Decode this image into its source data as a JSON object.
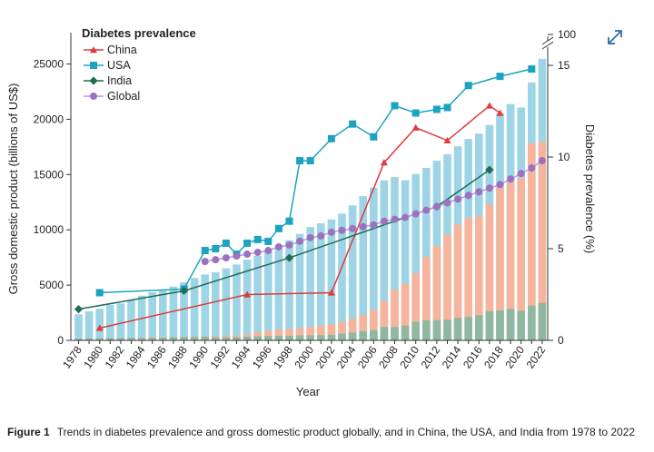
{
  "figure": {
    "label": "Figure 1",
    "caption": "Trends in diabetes prevalence and gross domestic product globally, and in China, the USA, and India from 1978 to 2022"
  },
  "expand_icon": "expand-diagonal-arrows-icon",
  "chart_data": {
    "type": "bar+line",
    "xlabel": "Year",
    "ylabel_left": "Gross domestic product (billions of US$)",
    "ylabel_right": "Diabetes prevalence (%)",
    "ylim_left": [
      0,
      27500
    ],
    "yticks_left": [
      "0",
      "5000",
      "10000",
      "15000",
      "20000",
      "25000"
    ],
    "ylim_right": [
      0,
      15
    ],
    "yticks_right": [
      "0",
      "5",
      "10",
      "15"
    ],
    "right_axis_break_label": "100",
    "xticks": [
      "1978",
      "1980",
      "1982",
      "1984",
      "1986",
      "1988",
      "1990",
      "1992",
      "1994",
      "1996",
      "1998",
      "2000",
      "2002",
      "2004",
      "2006",
      "2008",
      "2010",
      "2012",
      "2014",
      "2016",
      "2018",
      "2020",
      "2022"
    ],
    "categories": [
      1978,
      1979,
      1980,
      1981,
      1982,
      1983,
      1984,
      1985,
      1986,
      1987,
      1988,
      1989,
      1990,
      1991,
      1992,
      1993,
      1994,
      1995,
      1996,
      1997,
      1998,
      1999,
      2000,
      2001,
      2002,
      2003,
      2004,
      2005,
      2006,
      2007,
      2008,
      2009,
      2010,
      2011,
      2012,
      2013,
      2014,
      2015,
      2016,
      2017,
      2018,
      2019,
      2020,
      2021,
      2022
    ],
    "gdp_series": [
      {
        "name": "USA GDP",
        "color": "#9ed5e6",
        "values": [
          2350,
          2630,
          2860,
          3210,
          3340,
          3640,
          4040,
          4350,
          4590,
          4870,
          5250,
          5640,
          5960,
          6160,
          6520,
          6860,
          7290,
          7640,
          8070,
          8580,
          9060,
          9630,
          10250,
          10580,
          10940,
          11460,
          12210,
          13040,
          13810,
          14470,
          14770,
          14480,
          15050,
          15600,
          16250,
          16840,
          17550,
          18210,
          18700,
          19480,
          20530,
          21380,
          21060,
          23320,
          25460
        ]
      },
      {
        "name": "China GDP",
        "color": "#f7b49c",
        "values": [
          150,
          180,
          190,
          200,
          210,
          230,
          260,
          310,
          300,
          270,
          310,
          350,
          360,
          380,
          430,
          440,
          560,
          730,
          860,
          960,
          1030,
          1090,
          1210,
          1340,
          1470,
          1660,
          1960,
          2290,
          2750,
          3550,
          4590,
          5100,
          6090,
          7550,
          8530,
          9570,
          10480,
          11060,
          11230,
          12310,
          13890,
          14280,
          14690,
          17820,
          17960
        ]
      },
      {
        "name": "India GDP",
        "color": "#8fb8a0",
        "values": [
          140,
          150,
          190,
          200,
          200,
          220,
          210,
          230,
          250,
          280,
          300,
          300,
          320,
          270,
          290,
          280,
          330,
          370,
          400,
          420,
          420,
          460,
          470,
          480,
          510,
          610,
          710,
          820,
          940,
          1220,
          1200,
          1340,
          1680,
          1820,
          1830,
          1860,
          2040,
          2100,
          2290,
          2650,
          2700,
          2840,
          2670,
          3150,
          3390
        ]
      }
    ],
    "prevalence_series": [
      {
        "name": "China",
        "marker": "triangle",
        "color": "#e03a3a",
        "points": [
          [
            1980,
            0.67
          ],
          [
            1994,
            2.5
          ],
          [
            2002,
            2.6
          ],
          [
            2007,
            9.7
          ],
          [
            2010,
            11.6
          ],
          [
            2013,
            10.9
          ],
          [
            2017,
            12.8
          ],
          [
            2018,
            12.4
          ]
        ]
      },
      {
        "name": "USA",
        "marker": "square",
        "color": "#1ba3bf",
        "points": [
          [
            1980,
            2.6
          ],
          [
            1988,
            2.8
          ],
          [
            1990,
            4.9
          ],
          [
            1991,
            5.0
          ],
          [
            1992,
            5.3
          ],
          [
            1993,
            4.7
          ],
          [
            1994,
            5.3
          ],
          [
            1995,
            5.5
          ],
          [
            1996,
            5.4
          ],
          [
            1997,
            6.1
          ],
          [
            1998,
            6.5
          ],
          [
            1999,
            9.8
          ],
          [
            2000,
            9.8
          ],
          [
            2002,
            11.0
          ],
          [
            2004,
            11.8
          ],
          [
            2006,
            11.1
          ],
          [
            2008,
            12.8
          ],
          [
            2010,
            12.4
          ],
          [
            2012,
            12.6
          ],
          [
            2013,
            12.7
          ],
          [
            2015,
            13.9
          ],
          [
            2018,
            14.4
          ],
          [
            2021,
            14.8
          ]
        ]
      },
      {
        "name": "India",
        "marker": "diamond",
        "color": "#1d6e54",
        "points": [
          [
            1978,
            1.7
          ],
          [
            1988,
            2.7
          ],
          [
            1998,
            4.5
          ],
          [
            2012,
            7.3
          ],
          [
            2017,
            9.3
          ]
        ]
      },
      {
        "name": "Global",
        "marker": "circle",
        "color": "#9b72c0",
        "points": [
          [
            1990,
            4.3
          ],
          [
            1991,
            4.4
          ],
          [
            1992,
            4.5
          ],
          [
            1993,
            4.6
          ],
          [
            1994,
            4.7
          ],
          [
            1995,
            4.8
          ],
          [
            1996,
            4.9
          ],
          [
            1997,
            5.1
          ],
          [
            1998,
            5.2
          ],
          [
            1999,
            5.4
          ],
          [
            2000,
            5.6
          ],
          [
            2001,
            5.7
          ],
          [
            2002,
            5.9
          ],
          [
            2003,
            6.0
          ],
          [
            2004,
            6.1
          ],
          [
            2005,
            6.2
          ],
          [
            2006,
            6.3
          ],
          [
            2007,
            6.5
          ],
          [
            2008,
            6.6
          ],
          [
            2009,
            6.7
          ],
          [
            2010,
            6.9
          ],
          [
            2011,
            7.1
          ],
          [
            2012,
            7.3
          ],
          [
            2013,
            7.5
          ],
          [
            2014,
            7.7
          ],
          [
            2015,
            7.9
          ],
          [
            2016,
            8.1
          ],
          [
            2017,
            8.3
          ],
          [
            2018,
            8.5
          ],
          [
            2019,
            8.8
          ],
          [
            2020,
            9.1
          ],
          [
            2021,
            9.4
          ],
          [
            2022,
            9.8
          ]
        ]
      }
    ],
    "legend": {
      "title": "Diabetes prevalence",
      "placement": "top-left",
      "entries": [
        "China",
        "USA",
        "India",
        "Global"
      ]
    }
  }
}
